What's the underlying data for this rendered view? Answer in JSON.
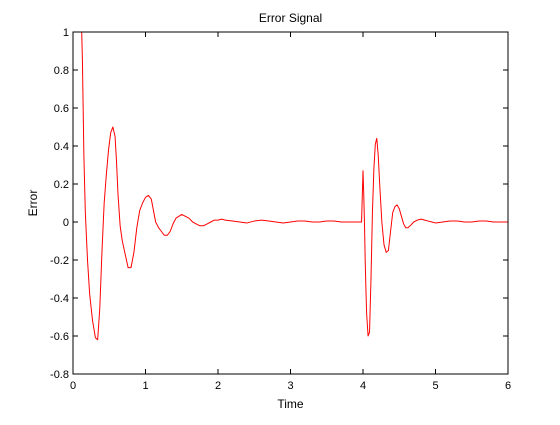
{
  "chart_data": {
    "type": "line",
    "title": "Error Signal",
    "xlabel": "Time",
    "ylabel": "Error",
    "xlim": [
      0,
      6
    ],
    "ylim": [
      -0.8,
      1
    ],
    "xticks": [
      0,
      1,
      2,
      3,
      4,
      5,
      6
    ],
    "xtick_labels": [
      "0",
      "1",
      "2",
      "3",
      "4",
      "5",
      "6"
    ],
    "yticks": [
      -0.8,
      -0.6,
      -0.4,
      -0.2,
      0,
      0.2,
      0.4,
      0.6,
      0.8,
      1
    ],
    "ytick_labels": [
      "-0.8",
      "-0.6",
      "-0.4",
      "-0.2",
      "0",
      "0.2",
      "0.4",
      "0.6",
      "0.8",
      "1"
    ],
    "grid": false,
    "colors": {
      "line": "#ff0000",
      "axes": "#000000",
      "background": "#ffffff"
    },
    "series": [
      {
        "x": [
          0.12,
          0.13,
          0.14,
          0.15,
          0.17,
          0.2,
          0.23,
          0.27,
          0.31,
          0.34,
          0.37,
          0.4,
          0.43,
          0.46,
          0.49,
          0.52,
          0.55,
          0.58,
          0.6,
          0.62,
          0.65,
          0.68,
          0.72,
          0.76,
          0.8,
          0.84,
          0.88,
          0.92,
          0.96,
          1.0,
          1.04,
          1.08,
          1.11,
          1.14,
          1.18,
          1.22,
          1.26,
          1.3,
          1.34,
          1.38,
          1.42,
          1.46,
          1.5,
          1.55,
          1.6,
          1.65,
          1.7,
          1.75,
          1.8,
          1.85,
          1.9,
          1.95,
          2.0,
          2.05,
          2.1,
          2.2,
          2.3,
          2.4,
          2.5,
          2.6,
          2.7,
          2.8,
          2.9,
          3.0,
          3.1,
          3.2,
          3.3,
          3.4,
          3.5,
          3.6,
          3.7,
          3.8,
          3.9,
          3.98,
          4.0,
          4.01,
          4.02,
          4.03,
          4.04,
          4.05,
          4.07,
          4.09,
          4.11,
          4.13,
          4.15,
          4.17,
          4.19,
          4.21,
          4.23,
          4.26,
          4.29,
          4.32,
          4.35,
          4.38,
          4.41,
          4.44,
          4.47,
          4.5,
          4.53,
          4.56,
          4.59,
          4.62,
          4.65,
          4.7,
          4.75,
          4.8,
          4.85,
          4.9,
          4.95,
          5.0,
          5.1,
          5.2,
          5.3,
          5.4,
          5.5,
          5.6,
          5.7,
          5.8,
          5.9,
          6.0
        ],
        "y": [
          1.0,
          0.85,
          0.6,
          0.35,
          0.05,
          -0.2,
          -0.38,
          -0.52,
          -0.61,
          -0.62,
          -0.45,
          -0.15,
          0.1,
          0.25,
          0.38,
          0.47,
          0.5,
          0.45,
          0.32,
          0.15,
          -0.02,
          -0.1,
          -0.17,
          -0.24,
          -0.24,
          -0.16,
          -0.03,
          0.06,
          0.1,
          0.13,
          0.14,
          0.12,
          0.06,
          0.0,
          -0.03,
          -0.05,
          -0.07,
          -0.07,
          -0.05,
          -0.01,
          0.02,
          0.03,
          0.04,
          0.03,
          0.02,
          0.0,
          -0.01,
          -0.02,
          -0.02,
          -0.01,
          0.0,
          0.01,
          0.01,
          0.015,
          0.01,
          0.005,
          0.0,
          -0.005,
          0.005,
          0.01,
          0.005,
          0.0,
          -0.005,
          0.0,
          0.005,
          0.005,
          0.0,
          0.0,
          0.005,
          0.005,
          0.0,
          0.0,
          0.0,
          0.0,
          0.27,
          0.15,
          0.0,
          -0.2,
          -0.35,
          -0.48,
          -0.6,
          -0.58,
          -0.3,
          0.05,
          0.28,
          0.41,
          0.44,
          0.35,
          0.2,
          0.0,
          -0.12,
          -0.16,
          -0.15,
          -0.05,
          0.05,
          0.08,
          0.09,
          0.07,
          0.03,
          -0.01,
          -0.03,
          -0.03,
          -0.02,
          0.0,
          0.01,
          0.015,
          0.01,
          0.005,
          0.0,
          -0.005,
          0.0,
          0.005,
          0.005,
          0.0,
          0.0,
          0.005,
          0.005,
          0.0,
          0.0,
          0.0
        ]
      }
    ]
  }
}
